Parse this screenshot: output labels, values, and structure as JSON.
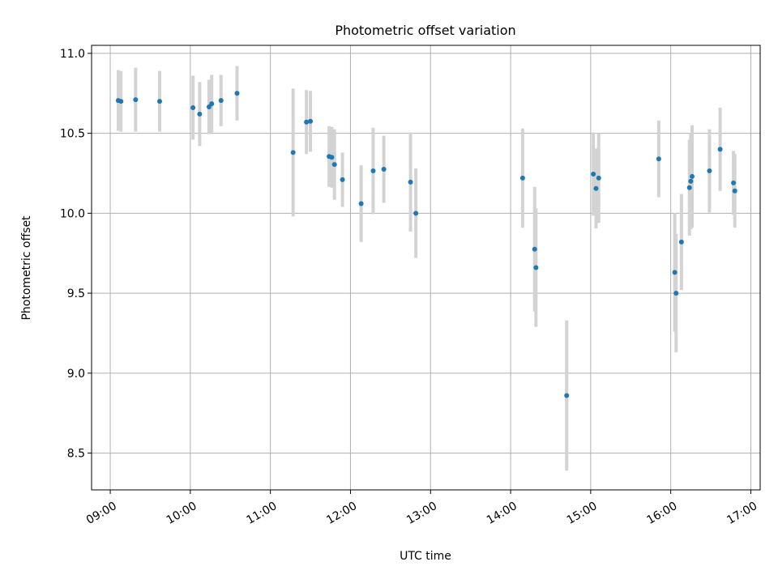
{
  "chart_data": {
    "type": "scatter",
    "title": "Photometric offset variation",
    "xlabel": "UTC time",
    "ylabel": "Photometric offset",
    "xlim": [
      "08:46",
      "17:07"
    ],
    "ylim": [
      8.27,
      11.05
    ],
    "x_ticks": [
      "09:00",
      "10:00",
      "11:00",
      "12:00",
      "13:00",
      "14:00",
      "15:00",
      "16:00",
      "17:00"
    ],
    "y_ticks": [
      "8.5",
      "9.0",
      "9.5",
      "10.0",
      "10.5",
      "11.0"
    ],
    "grid": true,
    "colors": {
      "point": "#1f77b4",
      "errorbar": "#d3d3d3",
      "grid": "#b0b0b0"
    },
    "series": [
      {
        "points": [
          {
            "x": "09:06",
            "y": 10.705,
            "err": 0.19
          },
          {
            "x": "09:08",
            "y": 10.7,
            "err": 0.19
          },
          {
            "x": "09:19",
            "y": 10.71,
            "err": 0.2
          },
          {
            "x": "09:37",
            "y": 10.7,
            "err": 0.19
          },
          {
            "x": "10:02",
            "y": 10.66,
            "err": 0.2
          },
          {
            "x": "10:07",
            "y": 10.62,
            "err": 0.2
          },
          {
            "x": "10:14",
            "y": 10.665,
            "err": 0.17
          },
          {
            "x": "10:16",
            "y": 10.685,
            "err": 0.18
          },
          {
            "x": "10:23",
            "y": 10.705,
            "err": 0.16
          },
          {
            "x": "10:35",
            "y": 10.75,
            "err": 0.17
          },
          {
            "x": "11:17",
            "y": 10.38,
            "err": 0.4
          },
          {
            "x": "11:27",
            "y": 10.57,
            "err": 0.2
          },
          {
            "x": "11:30",
            "y": 10.575,
            "err": 0.19
          },
          {
            "x": "11:44",
            "y": 10.355,
            "err": 0.19
          },
          {
            "x": "11:46",
            "y": 10.35,
            "err": 0.19
          },
          {
            "x": "11:48",
            "y": 10.305,
            "err": 0.22
          },
          {
            "x": "11:54",
            "y": 10.21,
            "err": 0.17
          },
          {
            "x": "12:08",
            "y": 10.06,
            "err": 0.24
          },
          {
            "x": "12:17",
            "y": 10.265,
            "err": 0.27
          },
          {
            "x": "12:25",
            "y": 10.275,
            "err": 0.21
          },
          {
            "x": "12:45",
            "y": 10.195,
            "err": 0.31
          },
          {
            "x": "12:49",
            "y": 10.0,
            "err": 0.28
          },
          {
            "x": "14:09",
            "y": 10.22,
            "err": 0.31
          },
          {
            "x": "14:18",
            "y": 9.775,
            "err": 0.39
          },
          {
            "x": "14:19",
            "y": 9.66,
            "err": 0.37
          },
          {
            "x": "14:42",
            "y": 8.86,
            "err": 0.47
          },
          {
            "x": "15:02",
            "y": 10.245,
            "err": 0.26
          },
          {
            "x": "15:04",
            "y": 10.155,
            "err": 0.25
          },
          {
            "x": "15:06",
            "y": 10.22,
            "err": 0.28
          },
          {
            "x": "15:51",
            "y": 10.34,
            "err": 0.24
          },
          {
            "x": "16:03",
            "y": 9.63,
            "err": 0.37
          },
          {
            "x": "16:04",
            "y": 9.5,
            "err": 0.37
          },
          {
            "x": "16:08",
            "y": 9.82,
            "err": 0.3
          },
          {
            "x": "16:14",
            "y": 10.16,
            "err": 0.3
          },
          {
            "x": "16:15",
            "y": 10.2,
            "err": 0.3
          },
          {
            "x": "16:16",
            "y": 10.23,
            "err": 0.32
          },
          {
            "x": "16:29",
            "y": 10.265,
            "err": 0.26
          },
          {
            "x": "16:37",
            "y": 10.4,
            "err": 0.26
          },
          {
            "x": "16:47",
            "y": 10.19,
            "err": 0.2
          },
          {
            "x": "16:48",
            "y": 10.14,
            "err": 0.23
          }
        ]
      }
    ]
  }
}
